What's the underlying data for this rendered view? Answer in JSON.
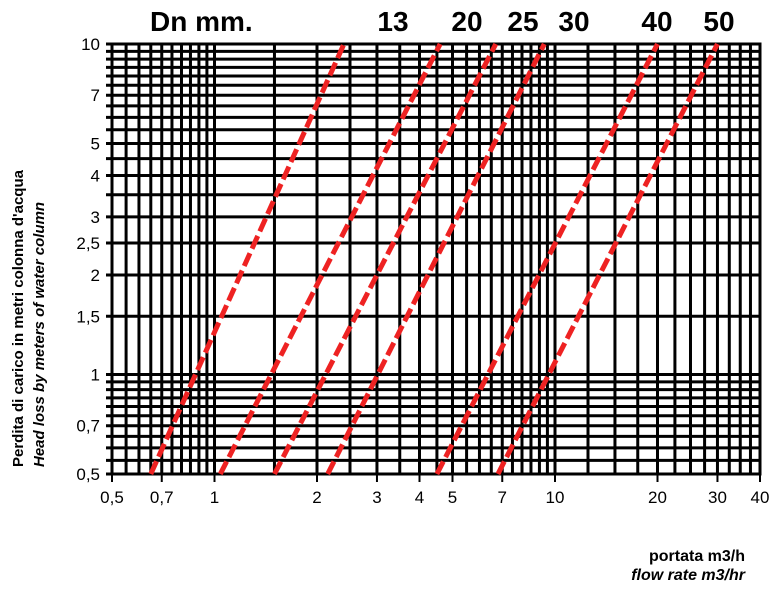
{
  "chart_data": {
    "type": "line",
    "title": "Dn mm.",
    "xlabel": "portata m3/h",
    "xlabel_en": "flow rate m3/hr",
    "ylabel": "Perdita di carico in metri colonna d'acqua",
    "ylabel_en": "Head loss by meters of water column",
    "x_scale": "log",
    "y_scale": "log",
    "xlim": [
      0.5,
      40
    ],
    "ylim": [
      0.5,
      10
    ],
    "grid": true,
    "x_ticks": [
      "0,5",
      "0,7",
      "1",
      "2",
      "3",
      "4",
      "5",
      "7",
      "10",
      "20",
      "30",
      "40"
    ],
    "x_tick_values": [
      0.5,
      0.7,
      1,
      2,
      3,
      4,
      5,
      7,
      10,
      20,
      30,
      40
    ],
    "y_ticks": [
      "0,5",
      "0,7",
      "1",
      "1,5",
      "2",
      "2,5",
      "3",
      "4",
      "5",
      "7",
      "10"
    ],
    "y_tick_values": [
      0.5,
      0.7,
      1,
      1.5,
      2,
      2.5,
      3,
      4,
      5,
      7,
      10
    ],
    "series": [
      {
        "name": "13",
        "x": [
          0.65,
          2.4
        ]
      },
      {
        "name": "20",
        "x": [
          1.04,
          4.6
        ]
      },
      {
        "name": "25",
        "x": [
          1.5,
          6.7
        ]
      },
      {
        "name": "",
        "x": [
          2.15,
          9.3
        ]
      },
      {
        "name": "30",
        "x": [
          4.5,
          20.0
        ]
      },
      {
        "name": "40",
        "x": [
          6.8,
          30.0
        ]
      },
      {
        "name": "50",
        "x": [
          null,
          null
        ]
      }
    ],
    "series_y": [
      0.5,
      10
    ],
    "line_color": "#ee2222"
  }
}
